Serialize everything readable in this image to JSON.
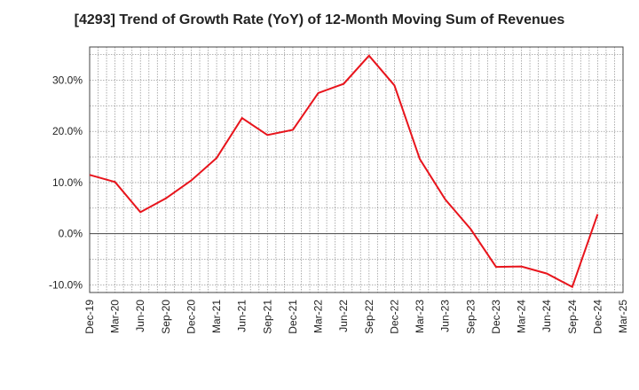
{
  "chart_data": {
    "type": "line",
    "title": "[4293]  Trend of Growth Rate (YoY) of 12-Month Moving Sum of Revenues",
    "xlabel": "",
    "ylabel": "",
    "x_tick_labels": [
      "Dec-19",
      "Mar-20",
      "Jun-20",
      "Sep-20",
      "Dec-20",
      "Mar-21",
      "Jun-21",
      "Sep-21",
      "Dec-21",
      "Mar-22",
      "Jun-22",
      "Sep-22",
      "Dec-22",
      "Mar-23",
      "Jun-23",
      "Sep-23",
      "Dec-23",
      "Mar-24",
      "Jun-24",
      "Sep-24",
      "Dec-24",
      "Mar-25"
    ],
    "y_ticks": [
      -10,
      0,
      10,
      20,
      30
    ],
    "y_tick_labels": [
      "-10.0%",
      "0.0%",
      "10.0%",
      "20.0%",
      "30.0%"
    ],
    "ylim": [
      -11.5,
      36.5
    ],
    "grid": true,
    "series": [
      {
        "color": "#e8141c",
        "x": [
          "Dec-19",
          "Mar-20",
          "Jun-20",
          "Sep-20",
          "Dec-20",
          "Mar-21",
          "Jun-21",
          "Sep-21",
          "Dec-21",
          "Mar-22",
          "Jun-22",
          "Sep-22",
          "Dec-22",
          "Mar-23",
          "Jun-23",
          "Sep-23",
          "Dec-23",
          "Mar-24",
          "Jun-24",
          "Sep-24",
          "Dec-24"
        ],
        "values": [
          11.5,
          10.1,
          4.2,
          6.9,
          10.4,
          14.8,
          22.6,
          19.3,
          20.3,
          27.5,
          29.3,
          34.8,
          29.0,
          14.6,
          6.7,
          0.9,
          -6.5,
          -6.4,
          -7.8,
          -10.4,
          3.8
        ]
      }
    ]
  }
}
